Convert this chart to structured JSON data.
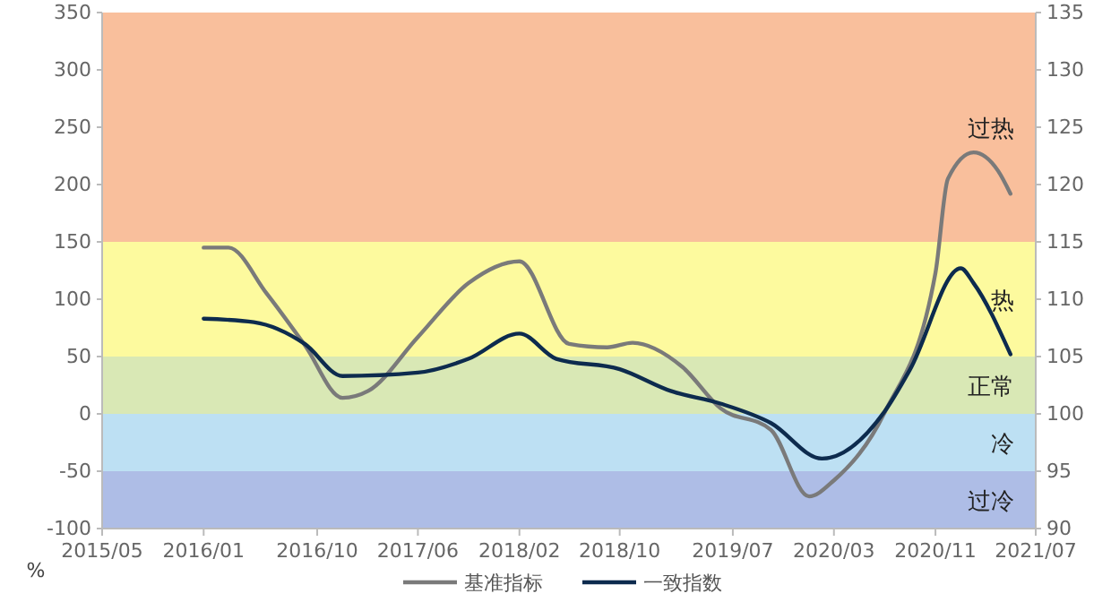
{
  "chart_data": {
    "type": "line",
    "ylabel": "%",
    "legend": "bottom",
    "xlim": [
      "2015-05",
      "2021-07"
    ],
    "xticks": [
      {
        "value": "2015-05",
        "label": "2015/05"
      },
      {
        "value": "2016-01",
        "label": "2016/01"
      },
      {
        "value": "2016-10",
        "label": "2016/10"
      },
      {
        "value": "2017-06",
        "label": "2017/06"
      },
      {
        "value": "2018-02",
        "label": "2018/02"
      },
      {
        "value": "2018-10",
        "label": "2018/10"
      },
      {
        "value": "2019-07",
        "label": "2019/07"
      },
      {
        "value": "2020-03",
        "label": "2020/03"
      },
      {
        "value": "2020-11",
        "label": "2020/11"
      },
      {
        "value": "2021-07",
        "label": "2021/07"
      }
    ],
    "ylim": [
      -100,
      350
    ],
    "yticks": [
      -100,
      -50,
      0,
      50,
      100,
      150,
      200,
      250,
      300,
      350
    ],
    "y2lim": [
      90,
      135
    ],
    "y2ticks": [
      90,
      95,
      100,
      105,
      110,
      115,
      120,
      125,
      130,
      135
    ],
    "bands": [
      {
        "axis": "y",
        "from": 150,
        "to": 350,
        "label": "过热",
        "color": "#f9bf9c"
      },
      {
        "axis": "y",
        "from": 50,
        "to": 150,
        "label": "热",
        "color": "#fdfa9e"
      },
      {
        "axis": "y",
        "from": 0,
        "to": 50,
        "label": "正常",
        "color": "#d9e8b5"
      },
      {
        "axis": "y",
        "from": -50,
        "to": 0,
        "label": "冷",
        "color": "#bde0f3"
      },
      {
        "axis": "y",
        "from": -100,
        "to": -50,
        "label": "过冷",
        "color": "#aebde6"
      }
    ],
    "series": [
      {
        "name": "基准指标",
        "color": "#7a7a7a",
        "x": [
          "2016-01",
          "2016-03",
          "2016-06",
          "2016-09",
          "2016-12",
          "2017-02",
          "2017-06",
          "2017-10",
          "2018-02",
          "2018-06",
          "2018-09",
          "2018-11",
          "2019-03",
          "2019-06",
          "2019-10",
          "2020-01",
          "2020-03",
          "2020-07",
          "2020-11",
          "2020-12",
          "2021-02",
          "2021-04",
          "2021-05"
        ],
        "values": [
          145,
          145,
          105,
          60,
          14,
          20,
          67,
          114,
          133,
          61,
          58,
          62,
          41,
          5,
          -14,
          -72,
          -58,
          1,
          123,
          205,
          228,
          212,
          192
        ]
      },
      {
        "name": "一致指数",
        "color": "#0d2b4e",
        "axis": "y2",
        "x": [
          "2016-01",
          "2016-05",
          "2016-09",
          "2016-12",
          "2017-06",
          "2017-10",
          "2018-02",
          "2018-05",
          "2018-10",
          "2019-02",
          "2019-06",
          "2019-10",
          "2020-02",
          "2020-07",
          "2020-09",
          "2021-01",
          "2021-02",
          "2021-05"
        ],
        "values": [
          108.3,
          108.0,
          106.1,
          103.3,
          103.6,
          104.8,
          107.0,
          104.8,
          103.9,
          102.0,
          100.9,
          99.2,
          96.1,
          100.2,
          103.9,
          112.7,
          111.4,
          105.2
        ]
      }
    ]
  }
}
